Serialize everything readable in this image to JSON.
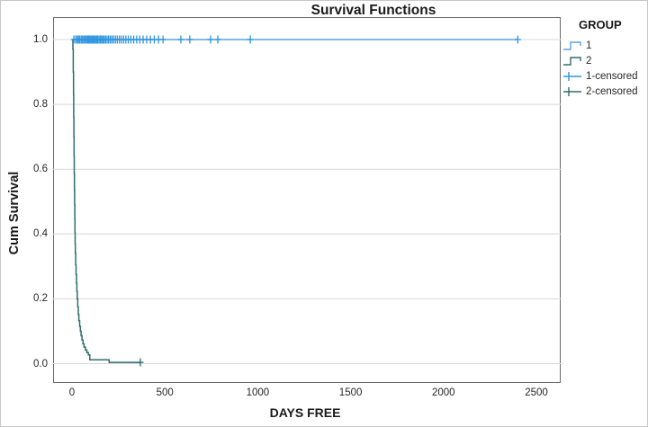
{
  "chart_data": {
    "type": "line",
    "subtype": "kaplan-meier-survival-step",
    "title": "Survival Functions",
    "xlabel": "DAYS FREE",
    "ylabel": "Cum Survival",
    "xlim": [
      0,
      2500
    ],
    "ylim": [
      0.0,
      1.0
    ],
    "grid": "horizontal",
    "xticks": [
      {
        "value": 0,
        "label": "0"
      },
      {
        "value": 500,
        "label": "500"
      },
      {
        "value": 1000,
        "label": "1000"
      },
      {
        "value": 1500,
        "label": "1500"
      },
      {
        "value": 2000,
        "label": "2000"
      },
      {
        "value": 2500,
        "label": "2500"
      }
    ],
    "yticks": [
      {
        "value": 0.0,
        "label": "0.0"
      },
      {
        "value": 0.2,
        "label": "0.2"
      },
      {
        "value": 0.4,
        "label": "0.4"
      },
      {
        "value": 0.6,
        "label": "0.6"
      },
      {
        "value": 0.8,
        "label": "0.8"
      },
      {
        "value": 1.0,
        "label": "1.0"
      }
    ],
    "series": [
      {
        "name": "1",
        "color": "#5AA2D8",
        "step_points": [
          [
            0,
            1.0
          ],
          [
            2400,
            1.0
          ]
        ]
      },
      {
        "name": "2",
        "color": "#2E6E6C",
        "step_points": [
          [
            0,
            1.0
          ],
          [
            5,
            0.97
          ],
          [
            7,
            0.9
          ],
          [
            8,
            0.83
          ],
          [
            9,
            0.76
          ],
          [
            10,
            0.7
          ],
          [
            11,
            0.64
          ],
          [
            12,
            0.585
          ],
          [
            13,
            0.535
          ],
          [
            14,
            0.49
          ],
          [
            15,
            0.445
          ],
          [
            16,
            0.405
          ],
          [
            17,
            0.37
          ],
          [
            18,
            0.34
          ],
          [
            20,
            0.305
          ],
          [
            22,
            0.275
          ],
          [
            24,
            0.248
          ],
          [
            26,
            0.223
          ],
          [
            28,
            0.2
          ],
          [
            31,
            0.175
          ],
          [
            34,
            0.152
          ],
          [
            37,
            0.133
          ],
          [
            41,
            0.115
          ],
          [
            45,
            0.1
          ],
          [
            49,
            0.086
          ],
          [
            54,
            0.073
          ],
          [
            59,
            0.061
          ],
          [
            65,
            0.051
          ],
          [
            72,
            0.042
          ],
          [
            80,
            0.034
          ],
          [
            88,
            0.027
          ],
          [
            96,
            0.012
          ],
          [
            200,
            0.004
          ],
          [
            372,
            0.004
          ]
        ]
      }
    ],
    "censored": [
      {
        "name": "1-censored",
        "color": "#2E95E0",
        "survival_level": 1.0,
        "times": [
          10,
          20,
          28,
          35,
          42,
          50,
          57,
          64,
          71,
          78,
          84,
          90,
          96,
          102,
          108,
          114,
          120,
          126,
          132,
          138,
          145,
          152,
          159,
          166,
          173,
          181,
          189,
          197,
          206,
          215,
          224,
          234,
          244,
          255,
          266,
          278,
          290,
          303,
          317,
          332,
          348,
          365,
          383,
          402,
          422,
          443,
          466,
          490,
          586,
          634,
          746,
          785,
          960,
          2400
        ]
      },
      {
        "name": "2-censored",
        "color": "#2E6E6C",
        "survival_level": 0.004,
        "times": [
          368
        ]
      }
    ],
    "legend": {
      "title": "GROUP",
      "position": "right",
      "entries": [
        {
          "label": "1",
          "swatch": "step",
          "color": "#5AA2D8"
        },
        {
          "label": "2",
          "swatch": "step",
          "color": "#2E6E6C"
        },
        {
          "label": "1-censored",
          "swatch": "plus",
          "color": "#2E95E0"
        },
        {
          "label": "2-censored",
          "swatch": "plus",
          "color": "#2E6E6C"
        }
      ]
    },
    "style": {
      "gridline_color": "#D8D8D8",
      "frame_color": "#6B6B6B",
      "background": "#FFFFFF"
    }
  }
}
